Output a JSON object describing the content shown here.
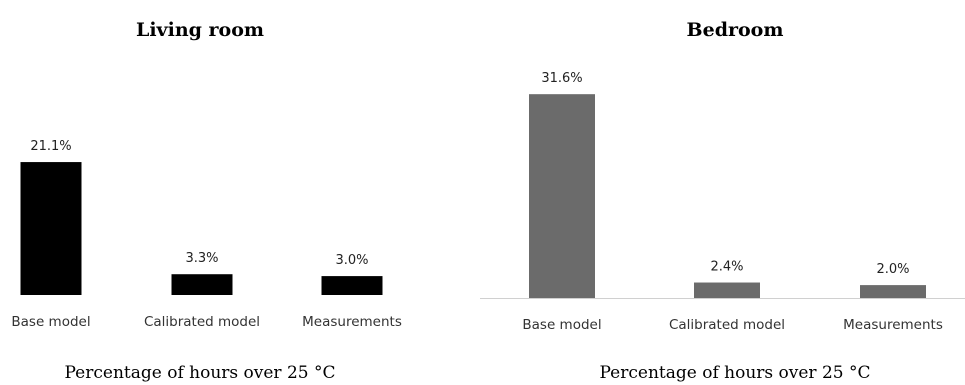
{
  "chart_data": [
    {
      "type": "bar",
      "title": "Living room",
      "xlabel": "Percentage of hours over 25 °C",
      "ylabel": "",
      "categories": [
        "Base model",
        "Calibrated model",
        "Measurements"
      ],
      "values": [
        21.1,
        3.3,
        3.0
      ],
      "data_labels": [
        "21.1%",
        "3.3%",
        "3.0%"
      ],
      "unit": "%",
      "bar_color": "#000000",
      "axis_line": false,
      "grid": false,
      "legend": "none"
    },
    {
      "type": "bar",
      "title": "Bedroom",
      "xlabel": "Percentage of hours over 25 °C",
      "ylabel": "",
      "categories": [
        "Base model",
        "Calibrated model",
        "Measurements"
      ],
      "values": [
        31.6,
        2.4,
        2.0
      ],
      "data_labels": [
        "31.6%",
        "2.4%",
        "2.0%"
      ],
      "unit": "%",
      "bar_color": "#6b6b6b",
      "axis_line": true,
      "grid": false,
      "legend": "none"
    }
  ]
}
